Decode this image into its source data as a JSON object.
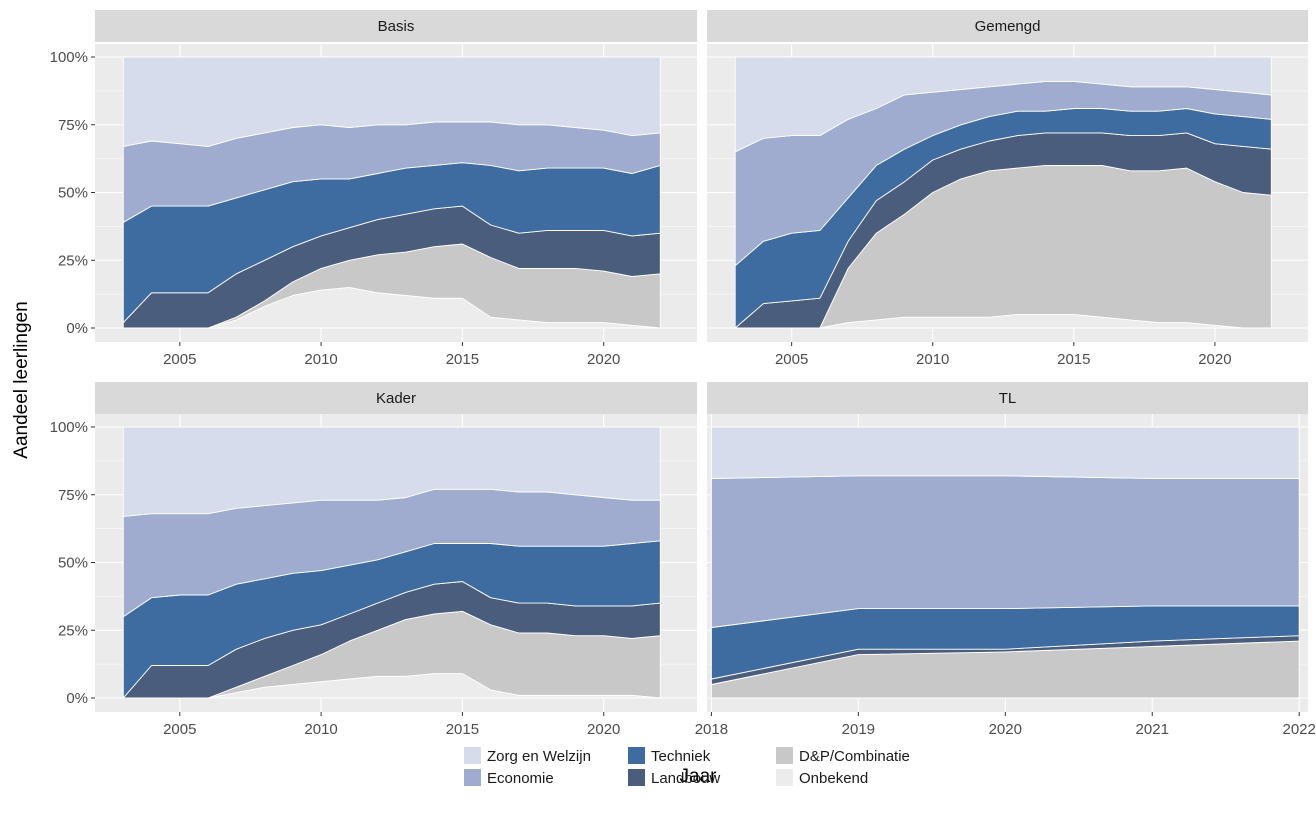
{
  "chart_data": {
    "type": "area",
    "stacked": "percent",
    "xlabel": "Jaar",
    "ylabel": "Aandeel leerlingen",
    "y_ticks": [
      "0%",
      "25%",
      "50%",
      "75%",
      "100%"
    ],
    "ylim": [
      0,
      1
    ],
    "grid": true,
    "legend_position": "bottom",
    "legend": [
      {
        "name": "Zorg en Welzijn",
        "color": "#d6dceb"
      },
      {
        "name": "Economie",
        "color": "#9faccf"
      },
      {
        "name": "Techniek",
        "color": "#3e6ca0"
      },
      {
        "name": "Landbouw",
        "color": "#4a5d7d"
      },
      {
        "name": "D&P/Combinatie",
        "color": "#c8c8c8"
      },
      {
        "name": "Onbekend",
        "color": "#ececec"
      }
    ],
    "stack_order_bottom_to_top": [
      "Onbekend",
      "D&P/Combinatie",
      "Landbouw",
      "Techniek",
      "Economie",
      "Zorg en Welzijn"
    ],
    "panels": [
      {
        "title": "Basis",
        "x": [
          2003,
          2004,
          2005,
          2006,
          2007,
          2008,
          2009,
          2010,
          2011,
          2012,
          2013,
          2014,
          2015,
          2016,
          2017,
          2018,
          2019,
          2020,
          2021,
          2022
        ],
        "x_ticks": [
          2005,
          2010,
          2015,
          2020
        ],
        "xlim": [
          2002,
          2023.3
        ],
        "cumulative": {
          "Onbekend": [
            0,
            0,
            0,
            0,
            0.03,
            0.08,
            0.12,
            0.14,
            0.15,
            0.13,
            0.12,
            0.11,
            0.11,
            0.04,
            0.03,
            0.02,
            0.02,
            0.02,
            0.01,
            0
          ],
          "D&P/Combinatie": [
            0,
            0,
            0,
            0,
            0.04,
            0.1,
            0.17,
            0.22,
            0.25,
            0.27,
            0.28,
            0.3,
            0.31,
            0.26,
            0.22,
            0.22,
            0.22,
            0.21,
            0.19,
            0.2
          ],
          "Landbouw": [
            0.02,
            0.13,
            0.13,
            0.13,
            0.2,
            0.25,
            0.3,
            0.34,
            0.37,
            0.4,
            0.42,
            0.44,
            0.45,
            0.38,
            0.35,
            0.36,
            0.36,
            0.36,
            0.34,
            0.35
          ],
          "Techniek": [
            0.39,
            0.45,
            0.45,
            0.45,
            0.48,
            0.51,
            0.54,
            0.55,
            0.55,
            0.57,
            0.59,
            0.6,
            0.61,
            0.6,
            0.58,
            0.59,
            0.59,
            0.59,
            0.57,
            0.6
          ],
          "Economie": [
            0.67,
            0.69,
            0.68,
            0.67,
            0.7,
            0.72,
            0.74,
            0.75,
            0.74,
            0.75,
            0.75,
            0.76,
            0.76,
            0.76,
            0.75,
            0.75,
            0.74,
            0.73,
            0.71,
            0.72
          ],
          "Zorg en Welzijn": [
            1,
            1,
            1,
            1,
            1,
            1,
            1,
            1,
            1,
            1,
            1,
            1,
            1,
            1,
            1,
            1,
            1,
            1,
            1,
            1
          ]
        }
      },
      {
        "title": "Gemengd",
        "x": [
          2003,
          2004,
          2005,
          2006,
          2007,
          2008,
          2009,
          2010,
          2011,
          2012,
          2013,
          2014,
          2015,
          2016,
          2017,
          2018,
          2019,
          2020,
          2021,
          2022
        ],
        "x_ticks": [
          2005,
          2010,
          2015,
          2020
        ],
        "xlim": [
          2002,
          2023.3
        ],
        "cumulative": {
          "Onbekend": [
            0,
            0,
            0,
            0,
            0.02,
            0.03,
            0.04,
            0.04,
            0.04,
            0.04,
            0.05,
            0.05,
            0.05,
            0.04,
            0.03,
            0.02,
            0.02,
            0.01,
            0,
            0
          ],
          "D&P/Combinatie": [
            0,
            0,
            0,
            0,
            0.22,
            0.35,
            0.42,
            0.5,
            0.55,
            0.58,
            0.59,
            0.6,
            0.6,
            0.6,
            0.58,
            0.58,
            0.59,
            0.54,
            0.5,
            0.49
          ],
          "Landbouw": [
            0,
            0.09,
            0.1,
            0.11,
            0.32,
            0.47,
            0.54,
            0.62,
            0.66,
            0.69,
            0.71,
            0.72,
            0.72,
            0.72,
            0.71,
            0.71,
            0.72,
            0.68,
            0.67,
            0.66
          ],
          "Techniek": [
            0.23,
            0.32,
            0.35,
            0.36,
            0.48,
            0.6,
            0.66,
            0.71,
            0.75,
            0.78,
            0.8,
            0.8,
            0.81,
            0.81,
            0.8,
            0.8,
            0.81,
            0.79,
            0.78,
            0.77
          ],
          "Economie": [
            0.65,
            0.7,
            0.71,
            0.71,
            0.77,
            0.81,
            0.86,
            0.87,
            0.88,
            0.89,
            0.9,
            0.91,
            0.91,
            0.9,
            0.89,
            0.89,
            0.89,
            0.88,
            0.87,
            0.86
          ],
          "Zorg en Welzijn": [
            1,
            1,
            1,
            1,
            1,
            1,
            1,
            1,
            1,
            1,
            1,
            1,
            1,
            1,
            1,
            1,
            1,
            1,
            1,
            1
          ]
        }
      },
      {
        "title": "Kader",
        "x": [
          2003,
          2004,
          2005,
          2006,
          2007,
          2008,
          2009,
          2010,
          2011,
          2012,
          2013,
          2014,
          2015,
          2016,
          2017,
          2018,
          2019,
          2020,
          2021,
          2022
        ],
        "x_ticks": [
          2005,
          2010,
          2015,
          2020
        ],
        "xlim": [
          2002,
          2023.3
        ],
        "cumulative": {
          "Onbekend": [
            0,
            0,
            0,
            0,
            0.02,
            0.04,
            0.05,
            0.06,
            0.07,
            0.08,
            0.08,
            0.09,
            0.09,
            0.03,
            0.01,
            0.01,
            0.01,
            0.01,
            0.01,
            0
          ],
          "D&P/Combinatie": [
            0,
            0,
            0,
            0,
            0.04,
            0.08,
            0.12,
            0.16,
            0.21,
            0.25,
            0.29,
            0.31,
            0.32,
            0.27,
            0.24,
            0.24,
            0.23,
            0.23,
            0.22,
            0.23
          ],
          "Landbouw": [
            0,
            0.12,
            0.12,
            0.12,
            0.18,
            0.22,
            0.25,
            0.27,
            0.31,
            0.35,
            0.39,
            0.42,
            0.43,
            0.37,
            0.35,
            0.35,
            0.34,
            0.34,
            0.34,
            0.35
          ],
          "Techniek": [
            0.3,
            0.37,
            0.38,
            0.38,
            0.42,
            0.44,
            0.46,
            0.47,
            0.49,
            0.51,
            0.54,
            0.57,
            0.57,
            0.57,
            0.56,
            0.56,
            0.56,
            0.56,
            0.57,
            0.58
          ],
          "Economie": [
            0.67,
            0.68,
            0.68,
            0.68,
            0.7,
            0.71,
            0.72,
            0.73,
            0.73,
            0.73,
            0.74,
            0.77,
            0.77,
            0.77,
            0.76,
            0.76,
            0.75,
            0.74,
            0.73,
            0.73
          ],
          "Zorg en Welzijn": [
            1,
            1,
            1,
            1,
            1,
            1,
            1,
            1,
            1,
            1,
            1,
            1,
            1,
            1,
            1,
            1,
            1,
            1,
            1,
            1
          ]
        }
      },
      {
        "title": "TL",
        "x": [
          2018,
          2019,
          2020,
          2021,
          2022
        ],
        "x_ticks": [
          2018,
          2019,
          2020,
          2021,
          2022
        ],
        "xlim": [
          2017.97,
          2022.06
        ],
        "cumulative": {
          "Onbekend": [
            0,
            0,
            0,
            0,
            0
          ],
          "D&P/Combinatie": [
            0.05,
            0.16,
            0.17,
            0.19,
            0.21
          ],
          "Landbouw": [
            0.07,
            0.18,
            0.18,
            0.21,
            0.23
          ],
          "Techniek": [
            0.26,
            0.33,
            0.33,
            0.34,
            0.34
          ],
          "Economie": [
            0.81,
            0.82,
            0.82,
            0.81,
            0.81
          ],
          "Zorg en Welzijn": [
            1,
            1,
            1,
            1,
            1
          ]
        }
      }
    ]
  }
}
